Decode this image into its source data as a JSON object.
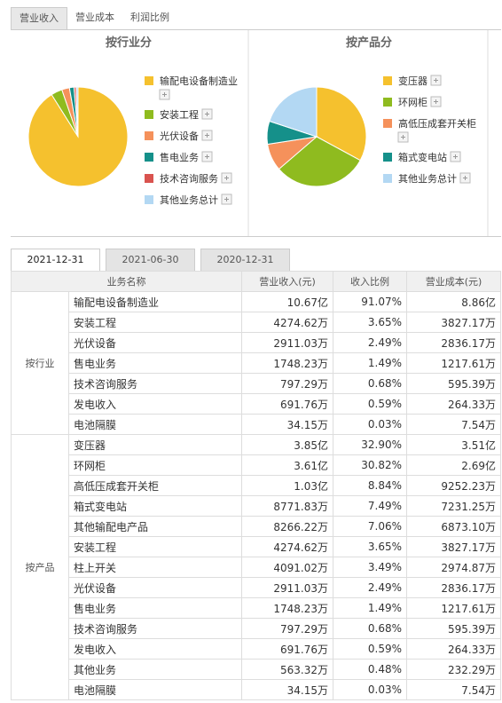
{
  "tabs": [
    "营业收入",
    "营业成本",
    "利润比例"
  ],
  "chart_data": [
    {
      "type": "pie",
      "title": "按行业分",
      "categories": [
        "输配电设备制造业",
        "安装工程",
        "光伏设备",
        "售电业务",
        "技术咨询服务",
        "其他业务总计"
      ],
      "values": [
        91.07,
        3.65,
        2.49,
        1.49,
        0.68,
        0.62
      ],
      "colors": [
        "#f5c12e",
        "#8fbb1f",
        "#f5915b",
        "#15908a",
        "#d9534f",
        "#b3d8f3"
      ]
    },
    {
      "type": "pie",
      "title": "按产品分",
      "categories": [
        "变压器",
        "环网柜",
        "高低压成套开关柜",
        "箱式变电站",
        "其他业务总计"
      ],
      "values": [
        32.9,
        30.82,
        8.84,
        7.49,
        19.95
      ],
      "colors": [
        "#f5c12e",
        "#8fbb1f",
        "#f5915b",
        "#15908a",
        "#b3d8f3"
      ]
    }
  ],
  "date_tabs": [
    "2021-12-31",
    "2021-06-30",
    "2020-12-31"
  ],
  "table": {
    "columns": [
      "业务名称",
      "营业收入(元)",
      "收入比例",
      "营业成本(元)"
    ],
    "groups": [
      {
        "label": "按行业",
        "rows": [
          [
            "输配电设备制造业",
            "10.67亿",
            "91.07%",
            "8.86亿"
          ],
          [
            "安装工程",
            "4274.62万",
            "3.65%",
            "3827.17万"
          ],
          [
            "光伏设备",
            "2911.03万",
            "2.49%",
            "2836.17万"
          ],
          [
            "售电业务",
            "1748.23万",
            "1.49%",
            "1217.61万"
          ],
          [
            "技术咨询服务",
            "797.29万",
            "0.68%",
            "595.39万"
          ],
          [
            "发电收入",
            "691.76万",
            "0.59%",
            "264.33万"
          ],
          [
            "电池隔膜",
            "34.15万",
            "0.03%",
            "7.54万"
          ]
        ]
      },
      {
        "label": "按产品",
        "rows": [
          [
            "变压器",
            "3.85亿",
            "32.90%",
            "3.51亿"
          ],
          [
            "环网柜",
            "3.61亿",
            "30.82%",
            "2.69亿"
          ],
          [
            "高低压成套开关柜",
            "1.03亿",
            "8.84%",
            "9252.23万"
          ],
          [
            "箱式变电站",
            "8771.83万",
            "7.49%",
            "7231.25万"
          ],
          [
            "其他输配电产品",
            "8266.22万",
            "7.06%",
            "6873.10万"
          ],
          [
            "安装工程",
            "4274.62万",
            "3.65%",
            "3827.17万"
          ],
          [
            "柱上开关",
            "4091.02万",
            "3.49%",
            "2974.87万"
          ],
          [
            "光伏设备",
            "2911.03万",
            "2.49%",
            "2836.17万"
          ],
          [
            "售电业务",
            "1748.23万",
            "1.49%",
            "1217.61万"
          ],
          [
            "技术咨询服务",
            "797.29万",
            "0.68%",
            "595.39万"
          ],
          [
            "发电收入",
            "691.76万",
            "0.59%",
            "264.33万"
          ],
          [
            "其他业务",
            "563.32万",
            "0.48%",
            "232.29万"
          ],
          [
            "电池隔膜",
            "34.15万",
            "0.03%",
            "7.54万"
          ]
        ]
      }
    ]
  }
}
